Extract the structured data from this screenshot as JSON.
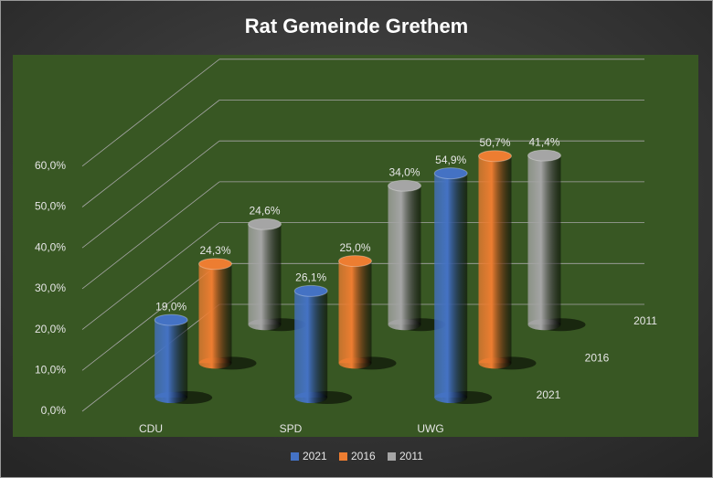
{
  "chart_data": {
    "type": "bar3d",
    "title": "Rat Gemeinde Grethem",
    "categories": [
      "CDU",
      "SPD",
      "UWG"
    ],
    "series": [
      {
        "name": "2021",
        "color": "#4472c4",
        "values": [
          19.0,
          26.1,
          54.9
        ],
        "value_labels": [
          "19,0%",
          "26,1%",
          "54,9%"
        ]
      },
      {
        "name": "2016",
        "color": "#ed7d31",
        "values": [
          24.3,
          25.0,
          50.7
        ],
        "value_labels": [
          "24,3%",
          "25,0%",
          "50,7%"
        ]
      },
      {
        "name": "2011",
        "color": "#a5a5a5",
        "values": [
          24.6,
          34.0,
          41.4
        ],
        "value_labels": [
          "24,6%",
          "34,0%",
          "41,4%"
        ]
      }
    ],
    "ylim": [
      0,
      60
    ],
    "yticks": [
      {
        "value": 0,
        "label": "0,0%"
      },
      {
        "value": 10,
        "label": "10,0%"
      },
      {
        "value": 20,
        "label": "20,0%"
      },
      {
        "value": 30,
        "label": "30,0%"
      },
      {
        "value": 40,
        "label": "40,0%"
      },
      {
        "value": 50,
        "label": "50,0%"
      },
      {
        "value": 60,
        "label": "60,0%"
      }
    ],
    "grid": true,
    "legend": "bottom"
  }
}
